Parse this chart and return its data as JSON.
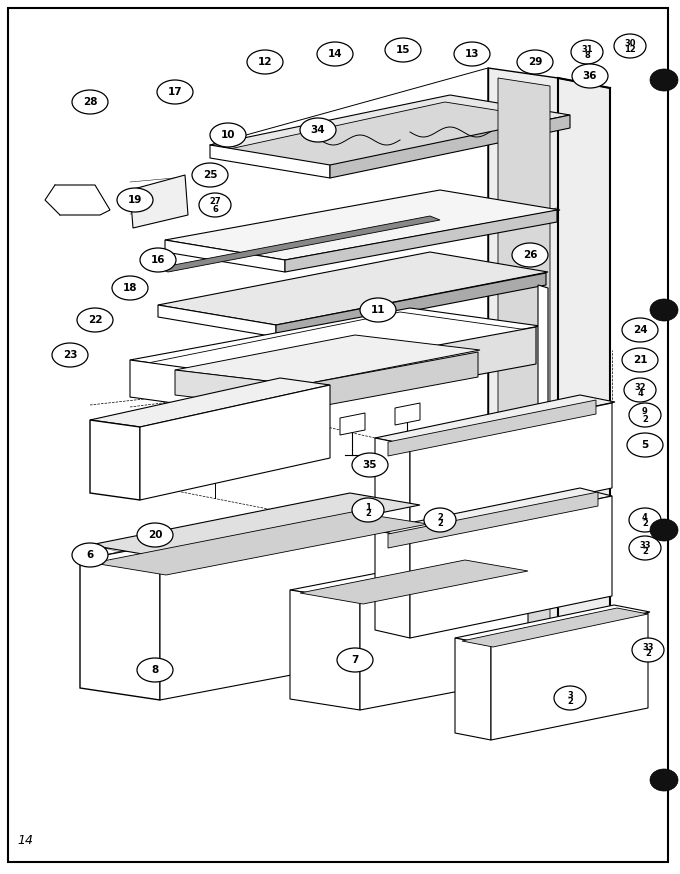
{
  "bg": "#ffffff",
  "dc": "#000000",
  "lw": 0.8,
  "fig_w": 6.8,
  "fig_h": 8.74,
  "dpi": 100
}
